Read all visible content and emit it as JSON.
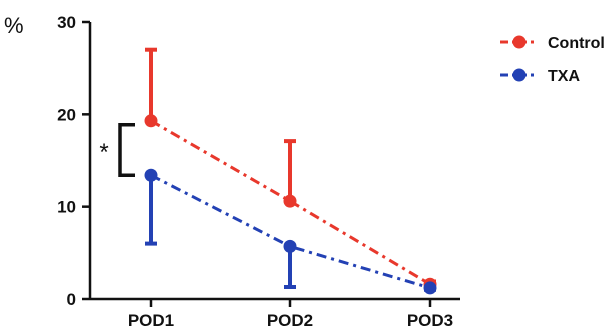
{
  "chart_data": {
    "type": "line",
    "categories": [
      "POD1",
      "POD2",
      "POD3"
    ],
    "ylabel": "%",
    "ylim": [
      0,
      30
    ],
    "yticks": [
      0,
      10,
      20,
      30
    ],
    "grid": false,
    "legend_position": "top-right",
    "series": [
      {
        "name": "Control",
        "color": "#e8382c",
        "line_style": "dash-dot",
        "error_direction": "up",
        "values": [
          19.3,
          10.6,
          1.6
        ],
        "error_bars": [
          7.7,
          6.5,
          0.3
        ]
      },
      {
        "name": "TXA",
        "color": "#2341b4",
        "line_style": "dash-dot",
        "error_direction": "down",
        "values": [
          13.4,
          5.7,
          1.2
        ],
        "error_bars": [
          7.4,
          4.4,
          0.2
        ]
      }
    ],
    "annotations": [
      {
        "text": "*",
        "category": "POD1",
        "between_series": [
          "Control",
          "TXA"
        ]
      }
    ]
  }
}
